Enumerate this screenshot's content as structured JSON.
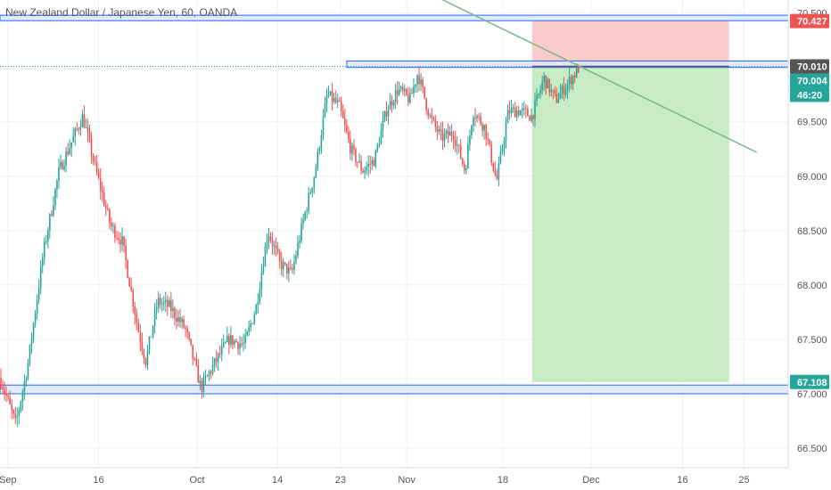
{
  "title": "New Zealand Dollar / Japanese Yen, 60, OANDA",
  "colors": {
    "up": "#26a69a",
    "down": "#ef5350",
    "zone_fill": "#dbe7fb",
    "zone_border": "#2962ff",
    "trend": "#7cb88a",
    "target": "#c9ebc4",
    "stop": "#fbcccc"
  },
  "chart_data": {
    "type": "candlestick",
    "ylim": [
      66.32,
      70.62
    ],
    "y_ticks": [
      "70.500",
      "70.000",
      "69.500",
      "69.000",
      "68.500",
      "68.000",
      "67.500",
      "67.000",
      "66.500"
    ],
    "x_ticks": [
      "Sep",
      "16",
      "Oct",
      "14",
      "23",
      "Nov",
      "18",
      "Dec",
      "16",
      "25"
    ],
    "x_tick_values": [
      0.01,
      0.125,
      0.25,
      0.352,
      0.432,
      0.516,
      0.638,
      0.75,
      0.866,
      0.944
    ],
    "price_tags": [
      {
        "label": "70.427",
        "value": 70.427,
        "color": "#ef5350"
      },
      {
        "label": "70.010",
        "value": 70.01,
        "color": "#555555"
      },
      {
        "label": "70.004",
        "value": 70.004,
        "color": "#26a69a"
      },
      {
        "label": "46:20",
        "value": 69.88,
        "color": "#26a69a"
      },
      {
        "label": "67.108",
        "value": 67.108,
        "color": "#26a69a"
      }
    ],
    "zones": [
      {
        "name": "top-resistance",
        "from": 70.43,
        "to": 70.48
      },
      {
        "name": "mid-resistance",
        "from": 70.0,
        "to": 70.06
      },
      {
        "name": "support",
        "from": 67.0,
        "to": 67.08
      }
    ],
    "path": [
      [
        0.0,
        67.15
      ],
      [
        0.02,
        66.72
      ],
      [
        0.035,
        67.25
      ],
      [
        0.055,
        68.3
      ],
      [
        0.075,
        69.05
      ],
      [
        0.09,
        69.3
      ],
      [
        0.105,
        69.55
      ],
      [
        0.12,
        69.1
      ],
      [
        0.14,
        68.55
      ],
      [
        0.155,
        68.4
      ],
      [
        0.175,
        67.6
      ],
      [
        0.185,
        67.3
      ],
      [
        0.2,
        67.85
      ],
      [
        0.215,
        67.8
      ],
      [
        0.235,
        67.6
      ],
      [
        0.255,
        67.05
      ],
      [
        0.27,
        67.25
      ],
      [
        0.29,
        67.5
      ],
      [
        0.31,
        67.45
      ],
      [
        0.325,
        67.8
      ],
      [
        0.34,
        68.5
      ],
      [
        0.355,
        68.2
      ],
      [
        0.37,
        68.1
      ],
      [
        0.385,
        68.6
      ],
      [
        0.4,
        69.05
      ],
      [
        0.415,
        69.75
      ],
      [
        0.43,
        69.65
      ],
      [
        0.445,
        69.25
      ],
      [
        0.46,
        69.05
      ],
      [
        0.475,
        69.15
      ],
      [
        0.49,
        69.6
      ],
      [
        0.505,
        69.8
      ],
      [
        0.52,
        69.7
      ],
      [
        0.53,
        69.95
      ],
      [
        0.545,
        69.55
      ],
      [
        0.56,
        69.35
      ],
      [
        0.575,
        69.4
      ],
      [
        0.59,
        69.05
      ],
      [
        0.6,
        69.6
      ],
      [
        0.615,
        69.45
      ],
      [
        0.63,
        68.95
      ],
      [
        0.645,
        69.6
      ],
      [
        0.66,
        69.6
      ],
      [
        0.675,
        69.55
      ],
      [
        0.69,
        69.9
      ],
      [
        0.705,
        69.7
      ],
      [
        0.72,
        69.85
      ],
      [
        0.735,
        70.0
      ]
    ],
    "trendline": {
      "x1": 0.545,
      "y1": 70.68,
      "x2": 0.96,
      "y2": 69.22
    },
    "position": {
      "x_from": 0.675,
      "x_to": 0.925,
      "entry": 70.01,
      "stop": 70.427,
      "target": 67.108
    }
  }
}
